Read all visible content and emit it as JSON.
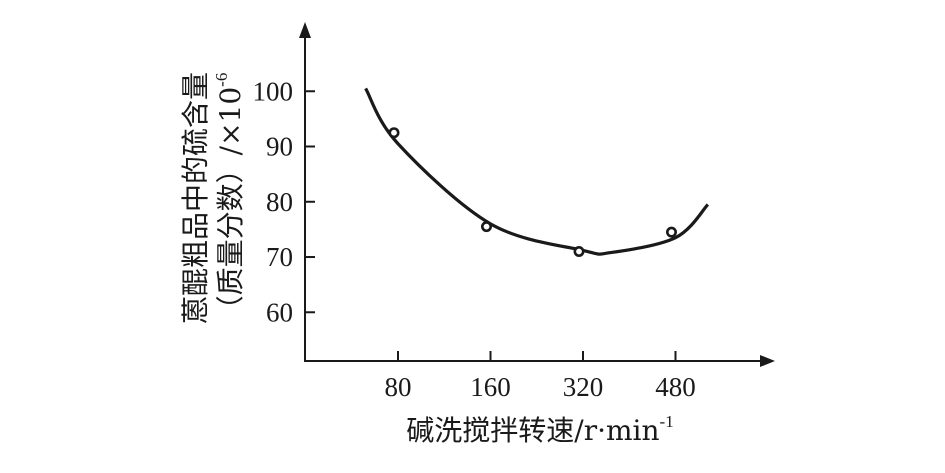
{
  "chart_data": {
    "type": "scatter",
    "categories": [
      "80",
      "160",
      "320",
      "480"
    ],
    "points": [
      {
        "x": "80",
        "y": 92.5
      },
      {
        "x": "160",
        "y": 75.5
      },
      {
        "x": "320",
        "y": 71
      },
      {
        "x": "480",
        "y": 74.5
      }
    ],
    "fit_curve": [
      {
        "x": 0.65,
        "y": 100.5
      },
      {
        "x": 1.0,
        "y": 90.5
      },
      {
        "x": 2.0,
        "y": 76.0
      },
      {
        "x": 3.0,
        "y": 71.2
      },
      {
        "x": 3.3,
        "y": 70.8
      },
      {
        "x": 4.0,
        "y": 73.5
      },
      {
        "x": 4.35,
        "y": 79.5
      }
    ],
    "y_ticks": [
      "60",
      "70",
      "80",
      "90",
      "100"
    ],
    "ylim": [
      51,
      110
    ],
    "xlabel_main": "碱洗搅拌转速/r·min",
    "xlabel_sup": "-1",
    "ylabel_line1": "蒽醌粗品中的硫含量",
    "ylabel_line2_main": "（质量分数）/×10",
    "ylabel_line2_sup": "-6",
    "grid": false,
    "legend": "none",
    "colors": {
      "ink": "#1a1a1a"
    }
  }
}
